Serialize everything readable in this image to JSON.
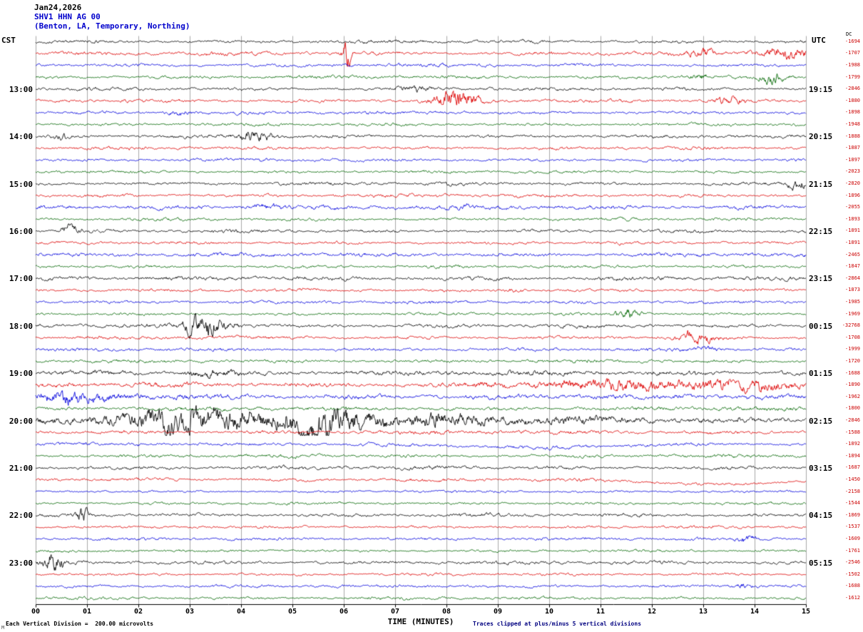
{
  "header": {
    "date": "Jan24,2026",
    "station": "SHV1 HHN AG 00",
    "location": "(Benton, LA, Temporary, Northing)"
  },
  "axes": {
    "left_tz": "CST",
    "right_tz": "UTC",
    "dc_header": "DC",
    "x_label": "TIME (MINUTES)",
    "x_ticks": [
      "00",
      "01",
      "02",
      "03",
      "04",
      "05",
      "06",
      "07",
      "08",
      "09",
      "10",
      "11",
      "12",
      "13",
      "14",
      "15"
    ],
    "left_labels": [
      "13:00",
      "14:00",
      "15:00",
      "16:00",
      "17:00",
      "18:00",
      "19:00",
      "20:00",
      "21:00",
      "22:00",
      "23:00"
    ],
    "right_labels": [
      "19:15",
      "20:15",
      "21:15",
      "22:15",
      "23:15",
      "00:15",
      "01:15",
      "02:15",
      "03:15",
      "04:15",
      "05:15"
    ]
  },
  "footer": {
    "scale": "Each Vertical Division =  200.00 microvolts",
    "clip_note": "Traces clipped at plus/minus 5 vertical divisions",
    "watermark": "M"
  },
  "colors": {
    "trace_cycle": [
      "#000000",
      "#dd0000",
      "#0000dd",
      "#006600"
    ],
    "grid": "#a8a8a8",
    "axis": "#000000",
    "dc_text": "#cc0000",
    "title_accent": "#0000cc"
  },
  "chart_data": {
    "type": "line",
    "description": "Helicorder seismogram, 48 fifteen-minute trace segments, 4 per hour, colors cycling black/red/blue/green",
    "x_range": [
      0,
      15
    ],
    "minutes_per_row": 15,
    "rows": 48,
    "clip_divisions": 5,
    "microvolts_per_division": 200.0,
    "traces": [
      {
        "dc": "-1694",
        "amp": 1.0,
        "events": []
      },
      {
        "dc": "-1707",
        "amp": 1.1,
        "events": [
          [
            6.05,
            0.12,
            9,
            "b"
          ],
          [
            13.0,
            0.35,
            2,
            "b"
          ],
          [
            14.55,
            0.8,
            2.8,
            "b"
          ]
        ]
      },
      {
        "dc": "-1988",
        "amp": 1.0,
        "events": []
      },
      {
        "dc": "-1799",
        "amp": 1.0,
        "events": [
          [
            12.9,
            0.3,
            3,
            "b"
          ],
          [
            14.35,
            0.3,
            3.5,
            "b"
          ]
        ]
      },
      {
        "dc": "-2846",
        "amp": 1.0,
        "events": [
          [
            7.4,
            0.5,
            1.5,
            "b"
          ]
        ]
      },
      {
        "dc": "-1880",
        "amp": 1.0,
        "events": [
          [
            8.15,
            0.55,
            6,
            "b"
          ],
          [
            13.5,
            0.4,
            2.5,
            "b"
          ]
        ]
      },
      {
        "dc": "-1898",
        "amp": 1.0,
        "events": [
          [
            2.8,
            0.35,
            2,
            "b"
          ]
        ]
      },
      {
        "dc": "-1948",
        "amp": 0.9,
        "events": []
      },
      {
        "dc": "-1888",
        "amp": 1.0,
        "events": [
          [
            0.5,
            0.2,
            1.5,
            "b"
          ],
          [
            4.3,
            0.45,
            3.5,
            "b"
          ]
        ]
      },
      {
        "dc": "-1887",
        "amp": 0.9,
        "events": []
      },
      {
        "dc": "-1897",
        "amp": 0.9,
        "events": []
      },
      {
        "dc": "-2023",
        "amp": 0.9,
        "events": []
      },
      {
        "dc": "-2820",
        "amp": 1.0,
        "events": [
          [
            14.85,
            0.3,
            3,
            "b"
          ]
        ]
      },
      {
        "dc": "-1896",
        "amp": 1.0,
        "events": []
      },
      {
        "dc": "-2055",
        "amp": 1.3,
        "events": [
          [
            4.5,
            0.5,
            1.6,
            "b"
          ]
        ]
      },
      {
        "dc": "-1893",
        "amp": 0.9,
        "events": []
      },
      {
        "dc": "-1891",
        "amp": 1.0,
        "events": [
          [
            0.65,
            0.25,
            3,
            "b"
          ]
        ]
      },
      {
        "dc": "-1891",
        "amp": 0.9,
        "events": []
      },
      {
        "dc": "-2465",
        "amp": 1.2,
        "events": []
      },
      {
        "dc": "-1847",
        "amp": 0.9,
        "events": []
      },
      {
        "dc": "-2864",
        "amp": 1.2,
        "events": []
      },
      {
        "dc": "-1873",
        "amp": 0.9,
        "events": [
          [
            9.3,
            0.3,
            2,
            "b"
          ]
        ]
      },
      {
        "dc": "-1985",
        "amp": 1.0,
        "events": []
      },
      {
        "dc": "-1969",
        "amp": 0.9,
        "events": [
          [
            11.55,
            0.35,
            4,
            "b"
          ]
        ]
      },
      {
        "dc": "-32768",
        "amp": 1.1,
        "events": [
          [
            3.05,
            0.25,
            3,
            "b"
          ],
          [
            3.35,
            0.6,
            6.5,
            "b"
          ]
        ]
      },
      {
        "dc": "-1708",
        "amp": 1.0,
        "events": [
          [
            12.9,
            0.45,
            3.5,
            "b"
          ]
        ]
      },
      {
        "dc": "-1999",
        "amp": 1.0,
        "events": [
          [
            13.0,
            0.5,
            1.6,
            "b"
          ]
        ]
      },
      {
        "dc": "-1720",
        "amp": 1.0,
        "events": []
      },
      {
        "dc": "-1688",
        "amp": 1.5,
        "events": [
          [
            3.4,
            0.6,
            1.6,
            "b"
          ]
        ]
      },
      {
        "dc": "-1890",
        "amp": 1.5,
        "events": [
          [
            12.8,
            4.0,
            2.0,
            "b"
          ]
        ]
      },
      {
        "dc": "-1962",
        "amp": 1.5,
        "events": [
          [
            0.8,
            1.6,
            1.8,
            "b"
          ]
        ]
      },
      {
        "dc": "-1800",
        "amp": 1.2,
        "events": []
      },
      {
        "dc": "-2846",
        "amp": 1.7,
        "events": [
          [
            3.3,
            1.2,
            3.5,
            "b"
          ],
          [
            5.8,
            0.9,
            4.5,
            "b"
          ],
          [
            5.5,
            6.0,
            2.6,
            "b"
          ]
        ]
      },
      {
        "dc": "-1588",
        "amp": 1.2,
        "events": []
      },
      {
        "dc": "-1892",
        "amp": 1.1,
        "events": [
          [
            9.7,
            2.8,
            -5,
            "s"
          ]
        ]
      },
      {
        "dc": "-1894",
        "amp": 1.0,
        "events": []
      },
      {
        "dc": "-1687",
        "amp": 1.1,
        "events": []
      },
      {
        "dc": "-1450",
        "amp": 1.0,
        "events": [
          [
            13.2,
            2.6,
            -6,
            "s"
          ]
        ]
      },
      {
        "dc": "-2158",
        "amp": 0.8,
        "events": []
      },
      {
        "dc": "-1544",
        "amp": 0.8,
        "events": []
      },
      {
        "dc": "-1869",
        "amp": 1.0,
        "events": [
          [
            0.9,
            0.15,
            6,
            "b"
          ]
        ]
      },
      {
        "dc": "-1537",
        "amp": 0.8,
        "events": []
      },
      {
        "dc": "-1609",
        "amp": 0.9,
        "events": [
          [
            13.9,
            0.3,
            2,
            "b"
          ]
        ]
      },
      {
        "dc": "-1761",
        "amp": 0.8,
        "events": []
      },
      {
        "dc": "-2546",
        "amp": 1.0,
        "events": [
          [
            0.35,
            0.3,
            4.5,
            "b"
          ]
        ]
      },
      {
        "dc": "-1502",
        "amp": 0.8,
        "events": []
      },
      {
        "dc": "-1688",
        "amp": 0.9,
        "events": [
          [
            13.8,
            0.3,
            2.2,
            "b"
          ]
        ]
      },
      {
        "dc": "-1612",
        "amp": 0.9,
        "events": []
      }
    ]
  }
}
